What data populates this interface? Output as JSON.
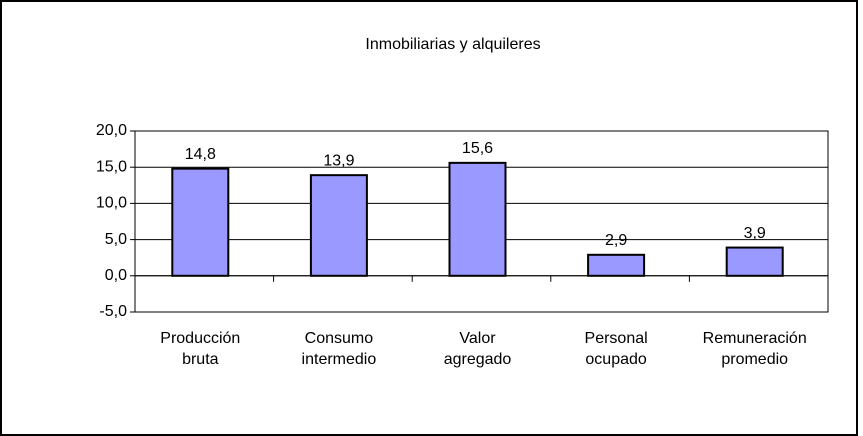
{
  "chart_data": {
    "type": "bar",
    "title": "Inmobiliarias y alquileres",
    "categories": [
      [
        "Producción",
        "bruta"
      ],
      [
        "Consumo",
        "intermedio"
      ],
      [
        "Valor",
        "agregado"
      ],
      [
        "Personal",
        "ocupado"
      ],
      [
        "Remuneración",
        "promedio"
      ]
    ],
    "values": [
      14.8,
      13.9,
      15.6,
      2.9,
      3.9
    ],
    "value_labels": [
      "14,8",
      "13,9",
      "15,6",
      "2,9",
      "3,9"
    ],
    "color": "#9999ff",
    "ylim": [
      -5,
      20
    ],
    "yticks": [
      {
        "value": -5,
        "label": "-5,0"
      },
      {
        "value": 0,
        "label": "0,0"
      },
      {
        "value": 5,
        "label": "5,0"
      },
      {
        "value": 10,
        "label": "10,0"
      },
      {
        "value": 15,
        "label": "15,0"
      },
      {
        "value": 20,
        "label": "20,0"
      }
    ],
    "grid": true
  }
}
